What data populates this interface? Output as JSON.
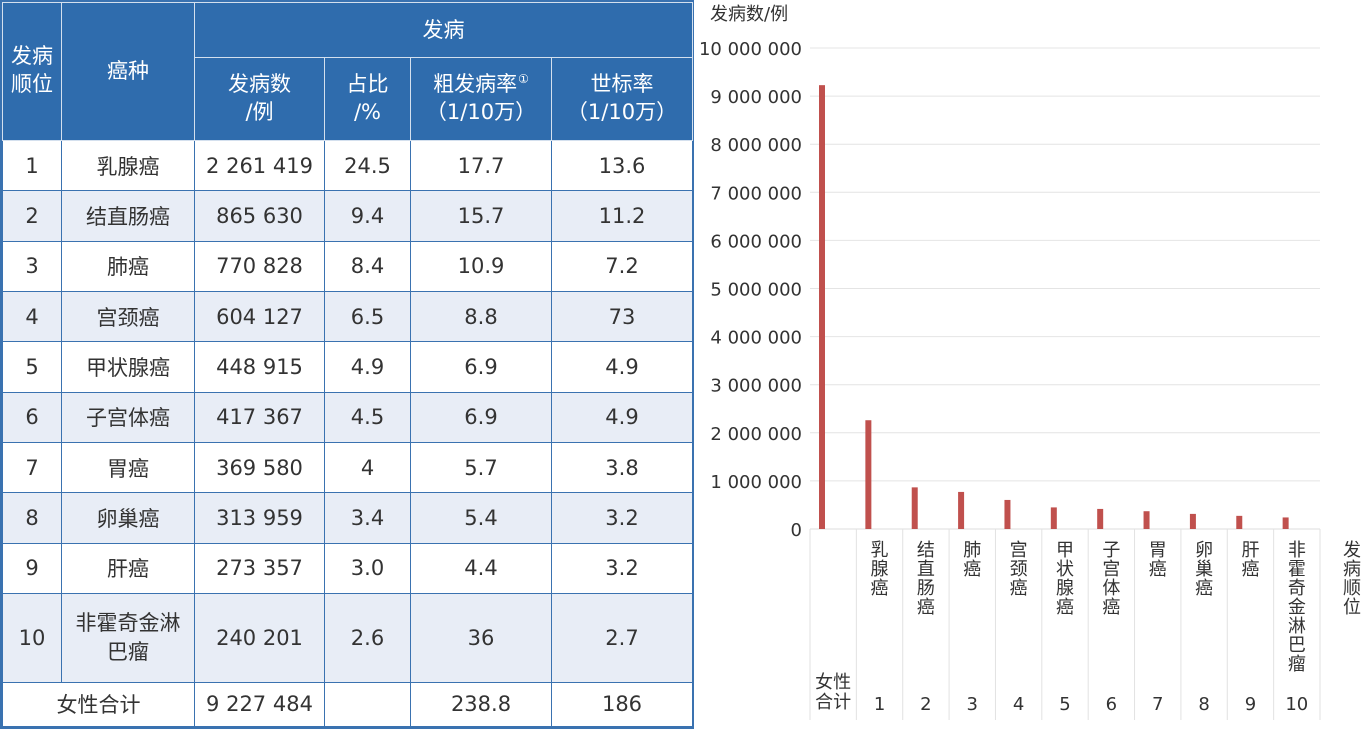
{
  "table": {
    "headers": {
      "rank": "发病顺位",
      "cancer": "癌种",
      "group": "发病",
      "cases": [
        "发病数",
        "/例"
      ],
      "share": [
        "占比",
        "/%"
      ],
      "crude_rate": [
        "粗发病率",
        "（1/10万）"
      ],
      "crude_note": "①",
      "asr": [
        "世标率",
        "（1/10万）"
      ]
    },
    "rows": [
      {
        "rank": "1",
        "cancer": "乳腺癌",
        "cases": "2 261 419",
        "share": "24.5",
        "crude": "17.7",
        "asr": "13.6"
      },
      {
        "rank": "2",
        "cancer": "结直肠癌",
        "cases": "865 630",
        "share": "9.4",
        "crude": "15.7",
        "asr": "11.2"
      },
      {
        "rank": "3",
        "cancer": "肺癌",
        "cases": "770 828",
        "share": "8.4",
        "crude": "10.9",
        "asr": "7.2"
      },
      {
        "rank": "4",
        "cancer": "宫颈癌",
        "cases": "604 127",
        "share": "6.5",
        "crude": "8.8",
        "asr": "73"
      },
      {
        "rank": "5",
        "cancer": "甲状腺癌",
        "cases": "448 915",
        "share": "4.9",
        "crude": "6.9",
        "asr": "4.9"
      },
      {
        "rank": "6",
        "cancer": "子宫体癌",
        "cases": "417 367",
        "share": "4.5",
        "crude": "6.9",
        "asr": "4.9"
      },
      {
        "rank": "7",
        "cancer": "胃癌",
        "cases": "369 580",
        "share": "4",
        "crude": "5.7",
        "asr": "3.8"
      },
      {
        "rank": "8",
        "cancer": "卵巢癌",
        "cases": "313 959",
        "share": "3.4",
        "crude": "5.4",
        "asr": "3.2"
      },
      {
        "rank": "9",
        "cancer": "肝癌",
        "cases": "273 357",
        "share": "3.0",
        "crude": "4.4",
        "asr": "3.2"
      },
      {
        "rank": "10",
        "cancer": "非霍奇金淋巴瘤",
        "cancer_lines": [
          "非霍奇金淋",
          "巴瘤"
        ],
        "cases": "240 201",
        "share": "2.6",
        "crude": "36",
        "asr": "2.7"
      }
    ],
    "total": {
      "label": "女性合计",
      "cases": "9 227 484",
      "share": "",
      "crude": "238.8",
      "asr": "186"
    }
  },
  "chart_data": {
    "type": "bar",
    "ylabel": "发病数/例",
    "xlabel": "发病顺位",
    "ylim": [
      0,
      10000000
    ],
    "yticks": [
      {
        "value": 0,
        "label": "0"
      },
      {
        "value": 1000000,
        "label": "1 000 000"
      },
      {
        "value": 2000000,
        "label": "2 000 000"
      },
      {
        "value": 3000000,
        "label": "3 000 000"
      },
      {
        "value": 4000000,
        "label": "4 000 000"
      },
      {
        "value": 5000000,
        "label": "5 000 000"
      },
      {
        "value": 6000000,
        "label": "6 000 000"
      },
      {
        "value": 7000000,
        "label": "7 000 000"
      },
      {
        "value": 8000000,
        "label": "8 000 000"
      },
      {
        "value": 9000000,
        "label": "9 000 000"
      },
      {
        "value": 10000000,
        "label": "10 000 000"
      }
    ],
    "categories": [
      {
        "name": "女性合计",
        "rank": ""
      },
      {
        "name": "乳腺癌",
        "rank": "1"
      },
      {
        "name": "结直肠癌",
        "rank": "2"
      },
      {
        "name": "肺癌",
        "rank": "3"
      },
      {
        "name": "宫颈癌",
        "rank": "4"
      },
      {
        "name": "甲状腺癌",
        "rank": "5"
      },
      {
        "name": "子宫体癌",
        "rank": "6"
      },
      {
        "name": "胃癌",
        "rank": "7"
      },
      {
        "name": "卵巢癌",
        "rank": "8"
      },
      {
        "name": "肝癌",
        "rank": "9"
      },
      {
        "name": "非霍奇金淋巴瘤",
        "rank": "10"
      }
    ],
    "values": [
      9227484,
      2261419,
      865630,
      770828,
      604127,
      448915,
      417367,
      369580,
      313959,
      273357,
      240201
    ],
    "grid": true,
    "bar_color": "#c0504d",
    "grid_color": "#e4e4e4"
  },
  "colors": {
    "header_bg": "#2f6cad",
    "row_alt_bg": "#e8edf6",
    "border": "#3a72b0"
  }
}
